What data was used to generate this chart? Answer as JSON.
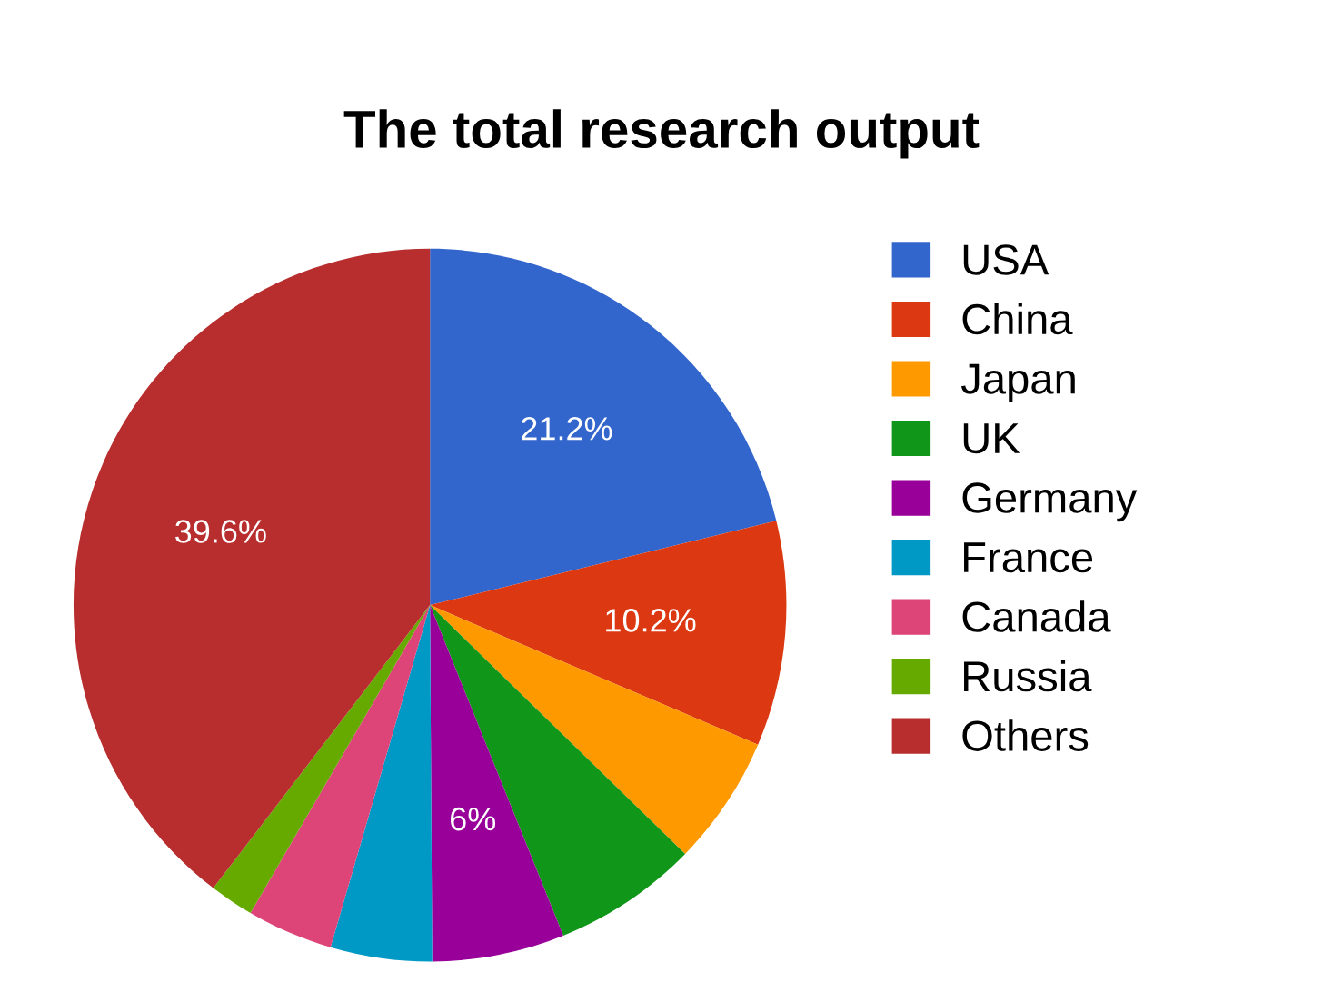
{
  "chart_data": {
    "type": "pie",
    "title": "The total research output",
    "categories": [
      "USA",
      "China",
      "Japan",
      "UK",
      "Germany",
      "France",
      "Canada",
      "Russia",
      "Others"
    ],
    "values": [
      21.2,
      10.2,
      5.9,
      6.6,
      6,
      4.6,
      3.9,
      2.0,
      39.6
    ],
    "colors": [
      "#3366cc",
      "#dc3912",
      "#ff9900",
      "#109618",
      "#990099",
      "#0099c6",
      "#dd4477",
      "#66aa00",
      "#b82e2e"
    ],
    "value_labels": [
      "21.2%",
      "10.2%",
      null,
      null,
      "6%",
      null,
      null,
      null,
      "39.6%"
    ],
    "legend": "right"
  }
}
